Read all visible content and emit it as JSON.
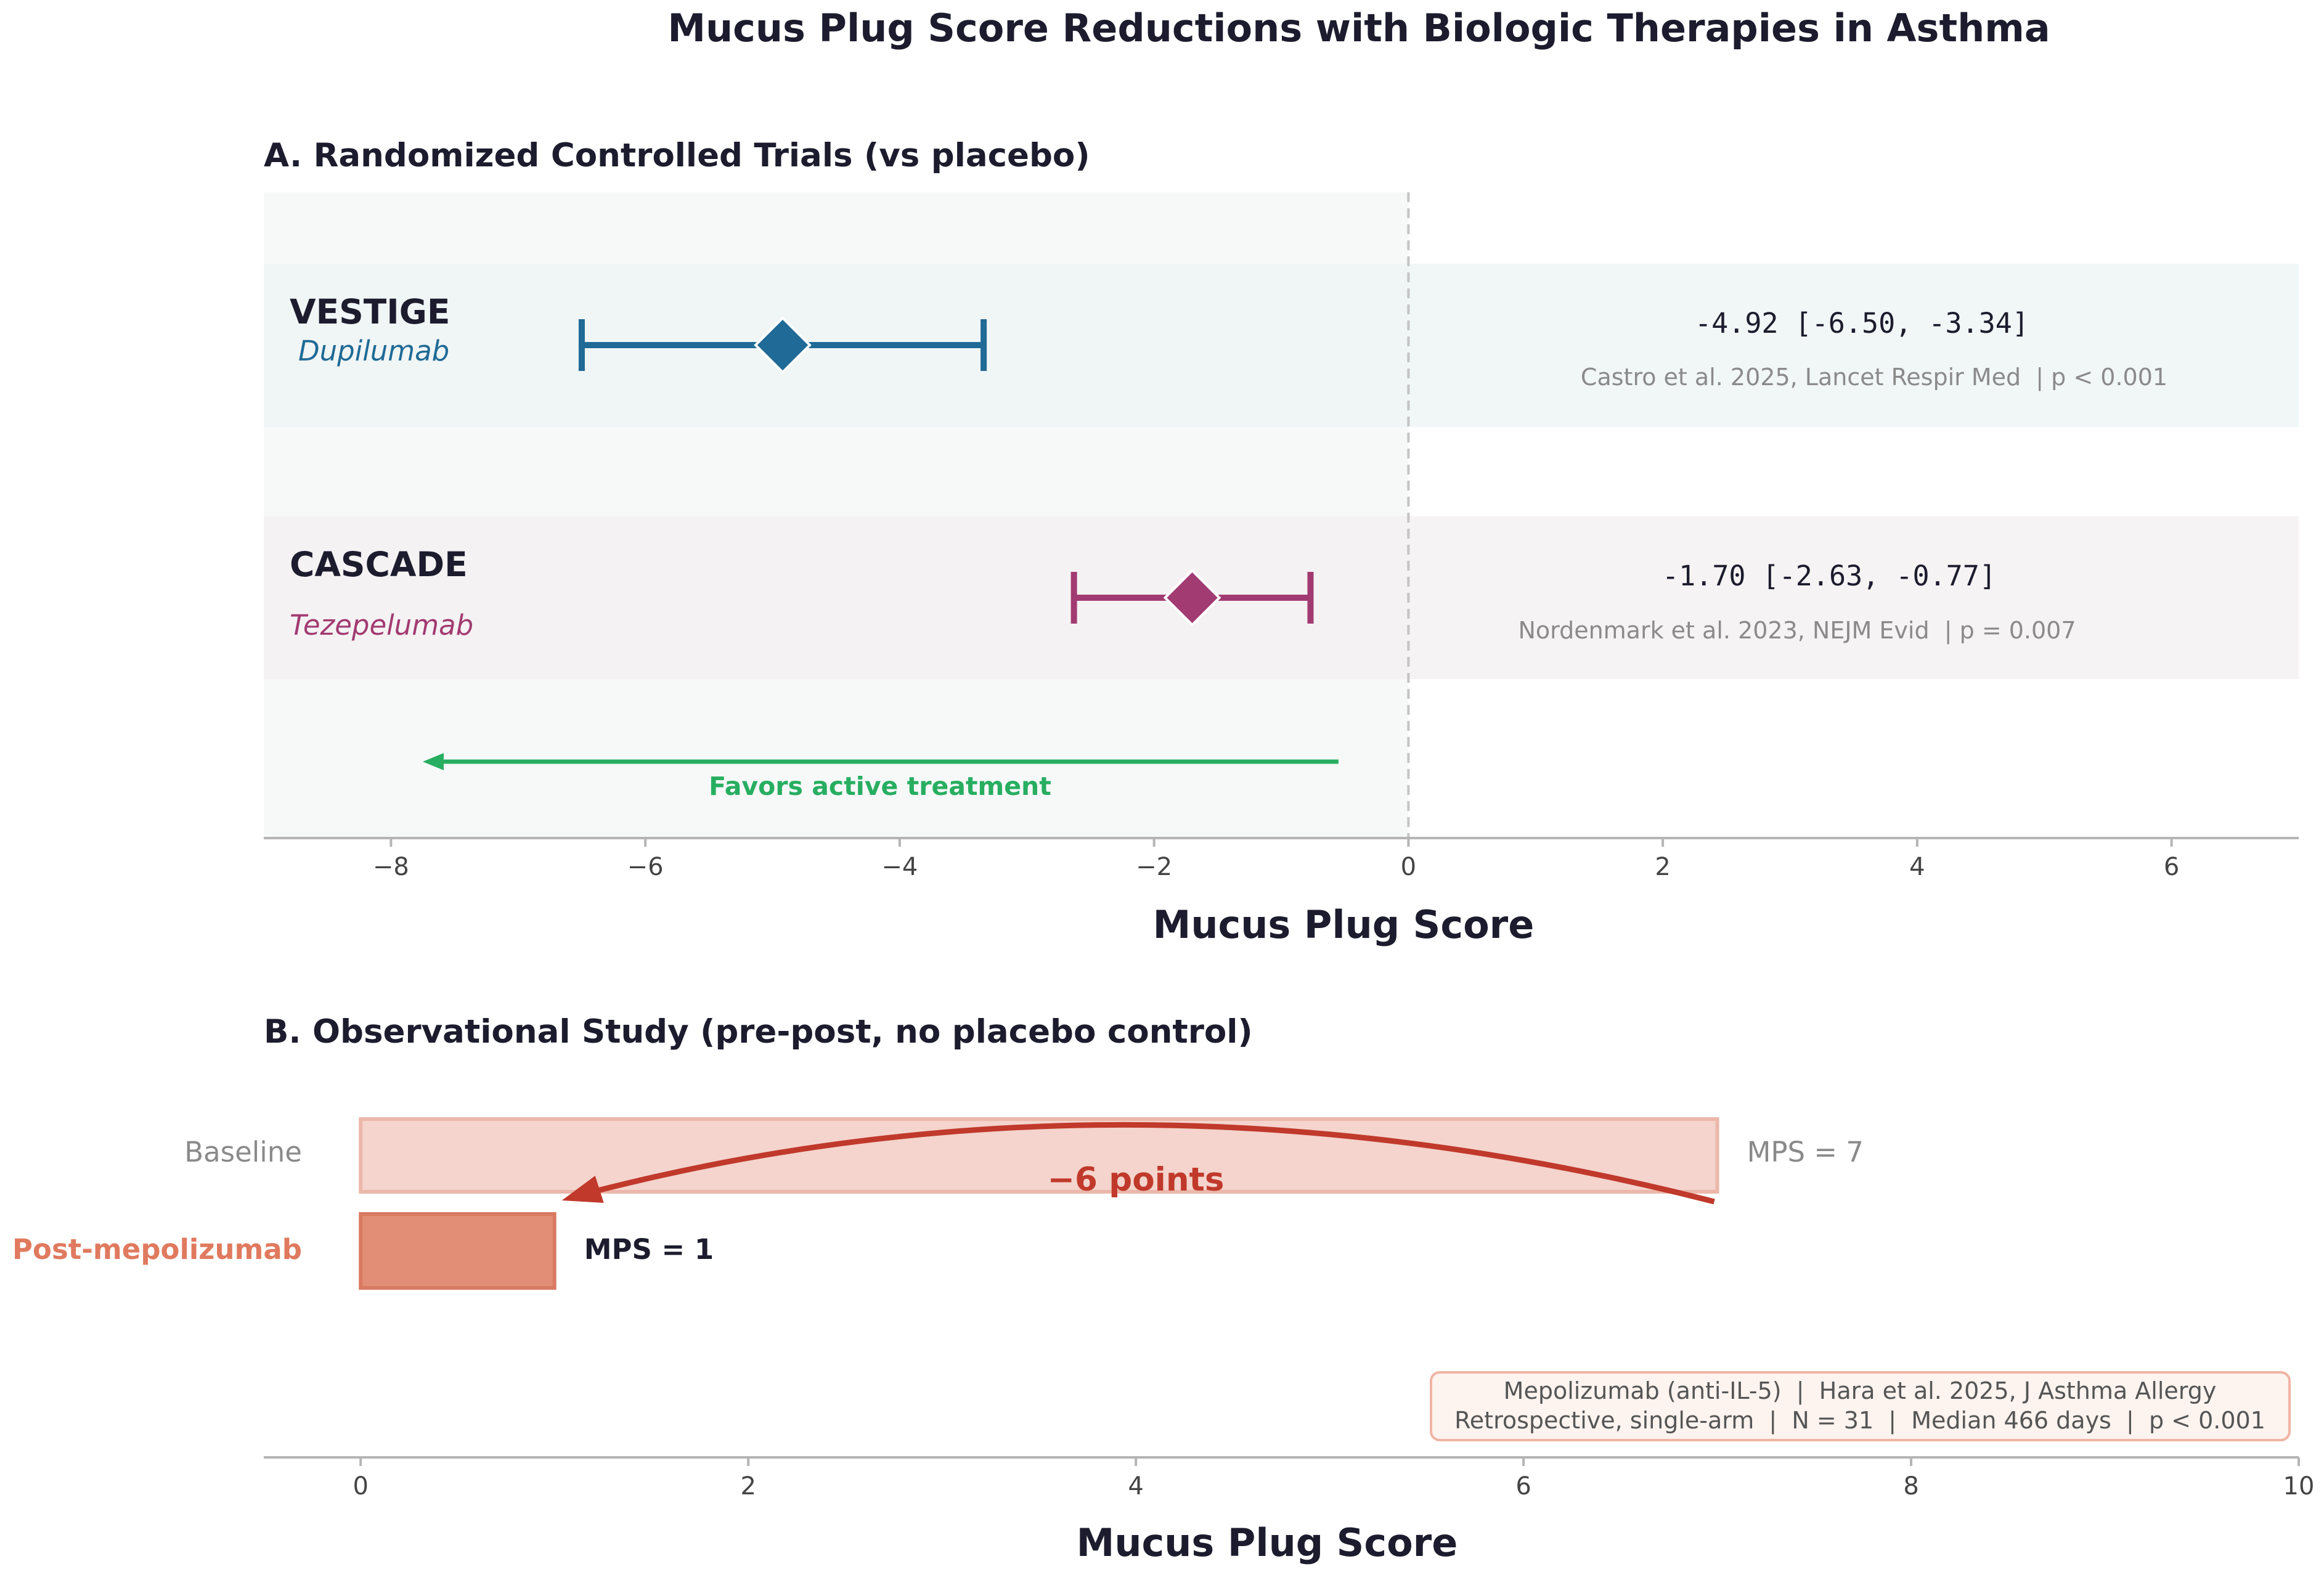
{
  "title": "Mucus Plug Score Reductions with Biologic Therapies in Asthma",
  "colors": {
    "dupilumab": "#1f6a96",
    "tezepelumab": "#a23b72",
    "favors": "#27ae60",
    "baseline_fill": "#f4d4cd",
    "post_fill": "#e28d76",
    "post_label": "#e07a5f",
    "arrow": "#c0392b",
    "text_dark": "#1c1c2e",
    "text_gray": "#8a8a8a"
  },
  "chart_data": [
    {
      "type": "forest",
      "title": "A. Randomized Controlled Trials (vs placebo)",
      "xlabel": "Mucus Plug Score",
      "xlim": [
        -9,
        7
      ],
      "xticks": [
        -8,
        -6,
        -4,
        -2,
        0,
        2,
        4,
        6
      ],
      "xtick_labels": [
        "−8",
        "−6",
        "−4",
        "−2",
        "0",
        "2",
        "4",
        "6"
      ],
      "reference_line": 0,
      "studies": [
        {
          "name": "VESTIGE",
          "drug": "Dupilumab",
          "estimate": -4.92,
          "ci": [
            -6.5,
            -3.34
          ],
          "estimate_label": "-4.92 [-6.50, -3.34]",
          "citation": "Castro et al. 2025, Lancet Respir Med  | p < 0.001"
        },
        {
          "name": "CASCADE",
          "drug": "Tezepelumab",
          "estimate": -1.7,
          "ci": [
            -2.63,
            -0.77
          ],
          "estimate_label": "-1.70 [-2.63, -0.77]",
          "citation": "Nordenmark et al. 2023, NEJM Evid  | p = 0.007"
        }
      ],
      "annotation": {
        "text": "Favors active treatment",
        "arrow_from": -0.55,
        "arrow_to": -7.75
      }
    },
    {
      "type": "bar",
      "orientation": "horizontal",
      "title": "B. Observational Study (pre-post, no placebo control)",
      "xlabel": "Mucus Plug Score",
      "xlim": [
        -0.5,
        10
      ],
      "xticks": [
        0,
        2,
        4,
        6,
        8,
        10
      ],
      "xtick_labels": [
        "0",
        "2",
        "4",
        "6",
        "8",
        "10"
      ],
      "categories": [
        "Baseline",
        "Post-mepolizumab"
      ],
      "values": [
        7,
        1
      ],
      "value_labels": [
        "MPS = 7",
        "MPS = 1"
      ],
      "change_label": "−6 points",
      "info_lines": [
        "Mepolizumab (anti-IL-5)  |  Hara et al. 2025, J Asthma Allergy",
        "Retrospective, single-arm  |  N = 31  |  Median 466 days  |  p < 0.001"
      ]
    }
  ]
}
